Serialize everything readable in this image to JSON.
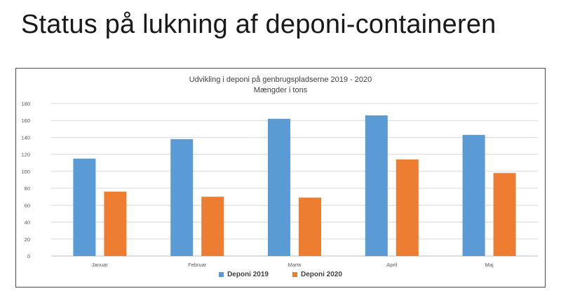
{
  "slide": {
    "title": "Status på lukning af deponi-containeren"
  },
  "chart_data": {
    "type": "bar",
    "title": "Udvikling i deponi på genbrugspladserne 2019 - 2020",
    "subtitle": "Mængder i tons",
    "xlabel": "",
    "ylabel": "",
    "categories": [
      "Januar",
      "Februar",
      "Marts",
      "April",
      "Maj"
    ],
    "series": [
      {
        "name": "Deponi 2019",
        "color": "#5b9bd5",
        "values": [
          115,
          138,
          162,
          166,
          143
        ]
      },
      {
        "name": "Deponi 2020",
        "color": "#ed7d31",
        "values": [
          76,
          70,
          69,
          114,
          98
        ]
      }
    ],
    "ylim": [
      0,
      180
    ],
    "yticks": [
      0,
      20,
      40,
      60,
      80,
      100,
      120,
      140,
      160,
      180
    ],
    "grid": true,
    "legend_position": "bottom"
  }
}
